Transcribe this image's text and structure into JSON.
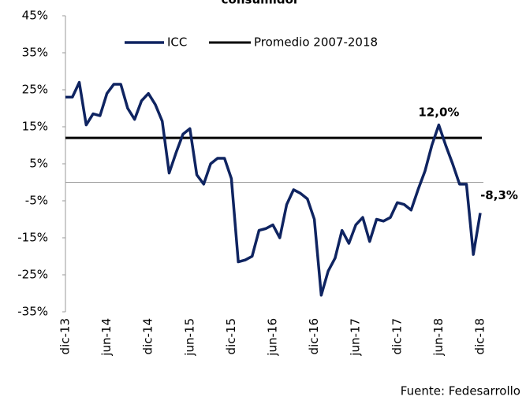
{
  "chart_data": {
    "type": "line",
    "title": "consumidor",
    "source": "Fuente: Fedesarrollo",
    "categories": [
      "dic-13",
      null,
      null,
      null,
      null,
      null,
      "jun-14",
      null,
      null,
      null,
      null,
      null,
      "dic-14",
      null,
      null,
      null,
      null,
      null,
      "jun-15",
      null,
      null,
      null,
      null,
      null,
      "dic-15",
      null,
      null,
      null,
      null,
      null,
      "jun-16",
      null,
      null,
      null,
      null,
      null,
      "dic-16",
      null,
      null,
      null,
      null,
      null,
      "jun-17",
      null,
      null,
      null,
      null,
      null,
      "dic-17",
      null,
      null,
      null,
      null,
      null,
      "jun-18",
      null,
      null,
      null,
      null,
      null,
      "dic-18"
    ],
    "series": [
      {
        "name": "ICC",
        "color": "#0f2461",
        "values": [
          23,
          23,
          27,
          15.5,
          18.5,
          18,
          24,
          26.5,
          26.5,
          20,
          17,
          22,
          24,
          21,
          16.5,
          2.5,
          8,
          13,
          14.5,
          2,
          -0.5,
          5,
          6.5,
          6.5,
          1,
          -21.5,
          -21,
          -20,
          -13,
          -12.5,
          -11.5,
          -15,
          -6,
          -2,
          -3,
          -4.5,
          -10,
          -30.5,
          -24,
          -20.5,
          -13,
          -16.5,
          -11.5,
          -9.5,
          -16,
          -10,
          -10.5,
          -9.5,
          -5.5,
          -6,
          -7.5,
          -2,
          3,
          10,
          15.5,
          10,
          5,
          -0.5,
          -0.5,
          -19.5,
          -8.3
        ],
        "value_labels": [
          null,
          null,
          null,
          null,
          null,
          null,
          null,
          null,
          null,
          null,
          null,
          null,
          null,
          null,
          null,
          null,
          null,
          null,
          null,
          null,
          null,
          null,
          null,
          null,
          null,
          null,
          null,
          null,
          null,
          null,
          null,
          null,
          null,
          null,
          null,
          null,
          null,
          null,
          null,
          null,
          null,
          null,
          null,
          null,
          null,
          null,
          null,
          null,
          null,
          null,
          null,
          null,
          null,
          null,
          null,
          null,
          null,
          null,
          null,
          null,
          "-8,3%"
        ]
      }
    ],
    "reference_line": {
      "name": "Promedio 2007-2018",
      "color": "#000000",
      "value": 12,
      "value_label": "12,0%"
    },
    "ylim": [
      -35,
      45
    ],
    "yticks": [
      {
        "value": -35,
        "label": "-35%"
      },
      {
        "value": -25,
        "label": "-25%"
      },
      {
        "value": -15,
        "label": "-15%"
      },
      {
        "value": -5,
        "label": "-5%"
      },
      {
        "value": 5,
        "label": "5%"
      },
      {
        "value": 15,
        "label": "15%"
      },
      {
        "value": 25,
        "label": "25%"
      },
      {
        "value": 35,
        "label": "35%"
      },
      {
        "value": 45,
        "label": "45%"
      }
    ],
    "grid": false
  }
}
